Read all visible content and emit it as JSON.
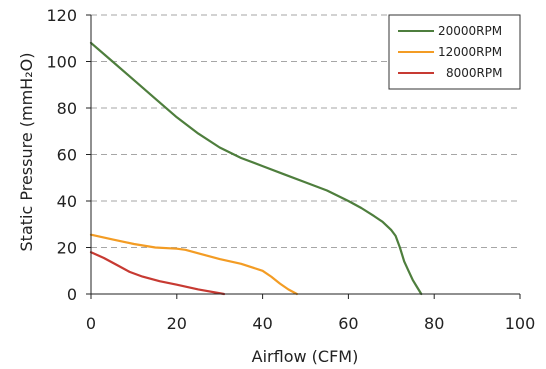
{
  "chart_data": {
    "type": "line",
    "title": "",
    "xlabel": "Airflow (CFM)",
    "ylabel": "Static Pressure (mmH₂O)",
    "xlim": [
      0,
      100
    ],
    "ylim": [
      0,
      120
    ],
    "xticks": [
      0,
      20,
      40,
      60,
      80,
      100
    ],
    "yticks": [
      0,
      20,
      40,
      60,
      80,
      100,
      120
    ],
    "grid": "horizontal-dashed",
    "legend_position": "top-right",
    "series": [
      {
        "name": "20000RPM",
        "color": "#4e7e3d",
        "x": [
          0,
          5,
          10,
          15,
          20,
          25,
          30,
          35,
          40,
          45,
          50,
          55,
          60,
          63,
          66,
          68,
          70,
          71,
          72,
          73,
          74,
          75,
          76,
          77
        ],
        "y": [
          108,
          100,
          92,
          84,
          76,
          69,
          63,
          58.5,
          55,
          51.5,
          48,
          44.5,
          40,
          37,
          33.5,
          31,
          27.5,
          25,
          20,
          14,
          10,
          6,
          3,
          0
        ]
      },
      {
        "name": "12000RPM",
        "color": "#f39c24",
        "x": [
          0,
          5,
          10,
          15,
          20,
          22,
          25,
          30,
          35,
          40,
          42,
          44,
          46,
          48
        ],
        "y": [
          25.5,
          23.5,
          21.5,
          20,
          19.5,
          19,
          17.5,
          15,
          13,
          10,
          7.5,
          4.5,
          2,
          0
        ]
      },
      {
        "name": "8000RPM",
        "color": "#c73a32",
        "x": [
          0,
          3,
          6,
          9,
          12,
          16,
          20,
          25,
          31
        ],
        "y": [
          18,
          15.5,
          12.5,
          9.5,
          7.5,
          5.5,
          4,
          2,
          0
        ]
      }
    ]
  }
}
